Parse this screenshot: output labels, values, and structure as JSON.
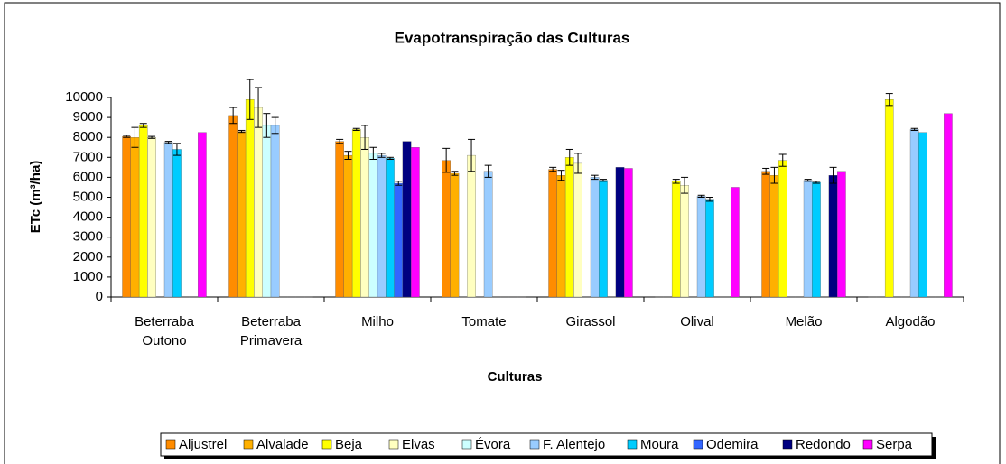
{
  "chart_data": {
    "type": "bar",
    "title": "Evapotranspiração das Culturas",
    "x_label": "Culturas",
    "y_label": "ETc (m³/ha)",
    "categories": [
      "Beterraba Outono",
      "Beterraba Primavera",
      "Milho",
      "Tomate",
      "Girassol",
      "Olival",
      "Melão",
      "Algodão"
    ],
    "ylim": [
      0,
      10000
    ],
    "yticks": [
      0,
      1000,
      2000,
      3000,
      4000,
      5000,
      6000,
      7000,
      8000,
      9000,
      10000
    ],
    "grid": false,
    "legend": "bottom",
    "series": [
      {
        "name": "Aljustrel",
        "color": "#ff8c00",
        "values": [
          8050,
          9100,
          7800,
          6850,
          6400,
          0,
          6300,
          0
        ],
        "errors": [
          50,
          400,
          100,
          600,
          100,
          0,
          150,
          0
        ]
      },
      {
        "name": "Alvalade",
        "color": "#ffb000",
        "values": [
          8000,
          8300,
          7100,
          6200,
          6100,
          0,
          6100,
          0
        ],
        "errors": [
          500,
          50,
          200,
          100,
          250,
          0,
          400,
          0
        ]
      },
      {
        "name": "Beja",
        "color": "#ffff00",
        "values": [
          8600,
          9900,
          8400,
          0,
          7000,
          5800,
          6850,
          9900
        ],
        "errors": [
          100,
          1000,
          50,
          0,
          400,
          100,
          300,
          300
        ]
      },
      {
        "name": "Elvas",
        "color": "#ffffc0",
        "values": [
          8000,
          9500,
          8000,
          7100,
          6700,
          5600,
          0,
          0
        ],
        "errors": [
          50,
          1000,
          600,
          800,
          500,
          400,
          0,
          0
        ]
      },
      {
        "name": "Évora",
        "color": "#ccffff",
        "values": [
          0,
          8600,
          7200,
          0,
          0,
          0,
          0,
          0
        ],
        "errors": [
          0,
          600,
          300,
          0,
          0,
          0,
          0,
          0
        ]
      },
      {
        "name": "F. Alentejo",
        "color": "#99ccff",
        "values": [
          7750,
          8600,
          7100,
          6300,
          6000,
          5050,
          5850,
          8400
        ],
        "errors": [
          50,
          400,
          100,
          300,
          100,
          50,
          50,
          50
        ]
      },
      {
        "name": "Moura",
        "color": "#00ccff",
        "values": [
          7400,
          0,
          6950,
          0,
          5850,
          4900,
          5750,
          8250
        ],
        "errors": [
          300,
          0,
          50,
          0,
          50,
          100,
          50,
          0
        ]
      },
      {
        "name": "Odemira",
        "color": "#3366ff",
        "values": [
          0,
          0,
          5700,
          0,
          0,
          0,
          0,
          0
        ],
        "errors": [
          0,
          0,
          100,
          0,
          0,
          0,
          0,
          0
        ]
      },
      {
        "name": "Redondo",
        "color": "#000080",
        "values": [
          0,
          0,
          7800,
          0,
          6500,
          0,
          6100,
          0
        ],
        "errors": [
          0,
          0,
          0,
          0,
          0,
          0,
          400,
          0
        ]
      },
      {
        "name": "Serpa",
        "color": "#ff00ff",
        "values": [
          8250,
          0,
          7500,
          0,
          6450,
          5500,
          6300,
          9200
        ],
        "errors": [
          0,
          0,
          0,
          0,
          0,
          0,
          0,
          0
        ]
      }
    ]
  }
}
